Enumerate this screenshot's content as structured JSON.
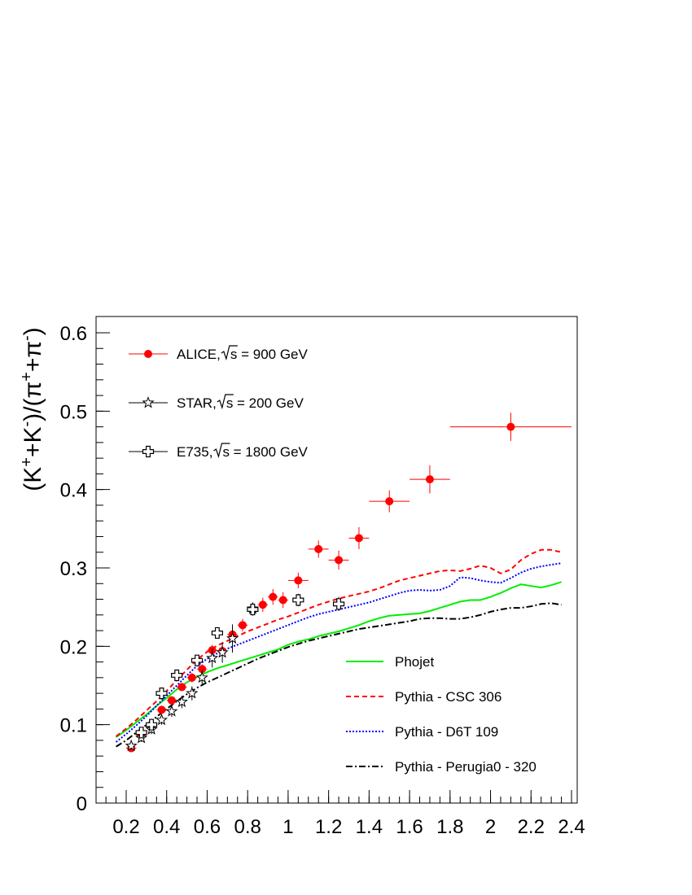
{
  "chart_data": {
    "type": "scatter",
    "ylabel_parts": [
      "(K",
      "+",
      "+K",
      "-",
      ")/(π",
      "+",
      "+π",
      "-",
      ")"
    ],
    "xlim": [
      0.05,
      2.4
    ],
    "ylim": [
      0,
      0.62
    ],
    "x_ticks": [
      {
        "v": 0.2,
        "label": "0.2"
      },
      {
        "v": 0.4,
        "label": "0.4"
      },
      {
        "v": 0.6,
        "label": "0.6"
      },
      {
        "v": 0.8,
        "label": "0.8"
      },
      {
        "v": 1.0,
        "label": "1"
      },
      {
        "v": 1.2,
        "label": "1.2"
      },
      {
        "v": 1.4,
        "label": "1.4"
      },
      {
        "v": 1.6,
        "label": "1.6"
      },
      {
        "v": 1.8,
        "label": "1.8"
      },
      {
        "v": 2.0,
        "label": "2"
      },
      {
        "v": 2.2,
        "label": "2.2"
      },
      {
        "v": 2.4,
        "label": "2.4"
      }
    ],
    "y_ticks": [
      {
        "v": 0,
        "label": "0"
      },
      {
        "v": 0.1,
        "label": "0.1"
      },
      {
        "v": 0.2,
        "label": "0.2"
      },
      {
        "v": 0.3,
        "label": "0.3"
      },
      {
        "v": 0.4,
        "label": "0.4"
      },
      {
        "v": 0.5,
        "label": "0.5"
      },
      {
        "v": 0.6,
        "label": "0.6"
      }
    ],
    "legend_upper": [
      {
        "label": "ALICE,",
        "sqrt_label": "s = 900 GeV",
        "marker": "circle",
        "color": "#ff0000"
      },
      {
        "label": "STAR,",
        "sqrt_label": "s = 200 GeV",
        "marker": "star",
        "color": "#000000"
      },
      {
        "label": "E735,",
        "sqrt_label": "s = 1800 GeV",
        "marker": "cross",
        "color": "#000000"
      }
    ],
    "legend_lower": [
      {
        "label": "Phojet",
        "color": "#00ee00",
        "dash": "none"
      },
      {
        "label": "Pythia - CSC 306",
        "color": "#ff0000",
        "dash": "dashed"
      },
      {
        "label": "Pythia - D6T 109",
        "color": "#0000ff",
        "dash": "dotted"
      },
      {
        "label": "Pythia - Perugia0 - 320",
        "color": "#000000",
        "dash": "dashdot"
      }
    ],
    "series": [
      {
        "name": "ALICE",
        "color": "#ff0000",
        "marker": "circle",
        "points": [
          {
            "x": 0.225,
            "y": 0.07,
            "xerr": 0.025,
            "yerr": 0.004
          },
          {
            "x": 0.275,
            "y": 0.086,
            "xerr": 0.025,
            "yerr": 0.004
          },
          {
            "x": 0.325,
            "y": 0.099,
            "xerr": 0.025,
            "yerr": 0.004
          },
          {
            "x": 0.375,
            "y": 0.119,
            "xerr": 0.025,
            "yerr": 0.005
          },
          {
            "x": 0.425,
            "y": 0.131,
            "xerr": 0.025,
            "yerr": 0.005
          },
          {
            "x": 0.475,
            "y": 0.148,
            "xerr": 0.025,
            "yerr": 0.005
          },
          {
            "x": 0.525,
            "y": 0.16,
            "xerr": 0.025,
            "yerr": 0.006
          },
          {
            "x": 0.575,
            "y": 0.171,
            "xerr": 0.025,
            "yerr": 0.006
          },
          {
            "x": 0.625,
            "y": 0.195,
            "xerr": 0.025,
            "yerr": 0.007
          },
          {
            "x": 0.675,
            "y": 0.194,
            "xerr": 0.025,
            "yerr": 0.007
          },
          {
            "x": 0.725,
            "y": 0.215,
            "xerr": 0.025,
            "yerr": 0.008
          },
          {
            "x": 0.775,
            "y": 0.227,
            "xerr": 0.025,
            "yerr": 0.008
          },
          {
            "x": 0.825,
            "y": 0.247,
            "xerr": 0.025,
            "yerr": 0.008
          },
          {
            "x": 0.875,
            "y": 0.253,
            "xerr": 0.025,
            "yerr": 0.009
          },
          {
            "x": 0.925,
            "y": 0.263,
            "xerr": 0.025,
            "yerr": 0.01
          },
          {
            "x": 0.975,
            "y": 0.259,
            "xerr": 0.025,
            "yerr": 0.01
          },
          {
            "x": 1.05,
            "y": 0.284,
            "xerr": 0.05,
            "yerr": 0.01
          },
          {
            "x": 1.15,
            "y": 0.324,
            "xerr": 0.05,
            "yerr": 0.011
          },
          {
            "x": 1.25,
            "y": 0.31,
            "xerr": 0.05,
            "yerr": 0.012
          },
          {
            "x": 1.35,
            "y": 0.338,
            "xerr": 0.05,
            "yerr": 0.014
          },
          {
            "x": 1.5,
            "y": 0.385,
            "xerr": 0.1,
            "yerr": 0.014
          },
          {
            "x": 1.7,
            "y": 0.413,
            "xerr": 0.1,
            "yerr": 0.018
          },
          {
            "x": 2.1,
            "y": 0.48,
            "xerr": 0.3,
            "yerr": 0.018
          }
        ]
      },
      {
        "name": "STAR",
        "color": "#000000",
        "marker": "star",
        "points": [
          {
            "x": 0.225,
            "y": 0.073,
            "yerr": 0.004
          },
          {
            "x": 0.275,
            "y": 0.083,
            "yerr": 0.005
          },
          {
            "x": 0.325,
            "y": 0.094,
            "yerr": 0.006
          },
          {
            "x": 0.375,
            "y": 0.106,
            "yerr": 0.006
          },
          {
            "x": 0.425,
            "y": 0.117,
            "yerr": 0.007
          },
          {
            "x": 0.475,
            "y": 0.129,
            "yerr": 0.008
          },
          {
            "x": 0.525,
            "y": 0.14,
            "yerr": 0.009
          },
          {
            "x": 0.575,
            "y": 0.16,
            "yerr": 0.01
          },
          {
            "x": 0.625,
            "y": 0.185,
            "yerr": 0.012
          },
          {
            "x": 0.675,
            "y": 0.192,
            "yerr": 0.013
          },
          {
            "x": 0.725,
            "y": 0.21,
            "yerr": 0.018
          },
          {
            "x": 0.825,
            "y": 0.248,
            "yerr": 0.008
          }
        ]
      },
      {
        "name": "E735",
        "color": "#000000",
        "marker": "cross",
        "points": [
          {
            "x": 0.275,
            "y": 0.09,
            "yerr": 0.004
          },
          {
            "x": 0.325,
            "y": 0.1,
            "yerr": 0.004
          },
          {
            "x": 0.375,
            "y": 0.14,
            "yerr": 0.005
          },
          {
            "x": 0.45,
            "y": 0.163,
            "yerr": 0.005
          },
          {
            "x": 0.55,
            "y": 0.182,
            "yerr": 0.006
          },
          {
            "x": 0.65,
            "y": 0.217,
            "yerr": 0.006
          },
          {
            "x": 0.825,
            "y": 0.247,
            "yerr": 0.006
          },
          {
            "x": 1.05,
            "y": 0.259,
            "yerr": 0.008
          },
          {
            "x": 1.25,
            "y": 0.254,
            "yerr": 0.009
          }
        ]
      }
    ],
    "curves": [
      {
        "name": "Phojet",
        "color": "#00ee00",
        "dash": "none",
        "x": [
          0.15,
          0.2,
          0.25,
          0.3,
          0.35,
          0.4,
          0.45,
          0.5,
          0.55,
          0.6,
          0.65,
          0.7,
          0.75,
          0.8,
          0.85,
          0.9,
          0.95,
          1.0,
          1.05,
          1.1,
          1.15,
          1.2,
          1.25,
          1.3,
          1.35,
          1.4,
          1.45,
          1.5,
          1.55,
          1.6,
          1.65,
          1.7,
          1.75,
          1.8,
          1.85,
          1.9,
          1.95,
          2.0,
          2.05,
          2.1,
          2.15,
          2.2,
          2.25,
          2.3,
          2.35
        ],
        "y": [
          0.084,
          0.093,
          0.103,
          0.113,
          0.124,
          0.134,
          0.145,
          0.154,
          0.161,
          0.167,
          0.172,
          0.176,
          0.18,
          0.184,
          0.188,
          0.192,
          0.196,
          0.202,
          0.206,
          0.209,
          0.213,
          0.216,
          0.219,
          0.223,
          0.227,
          0.232,
          0.236,
          0.239,
          0.24,
          0.241,
          0.242,
          0.245,
          0.249,
          0.253,
          0.257,
          0.259,
          0.259,
          0.263,
          0.268,
          0.274,
          0.279,
          0.277,
          0.275,
          0.278,
          0.282
        ]
      },
      {
        "name": "Pythia - CSC 306",
        "color": "#ff0000",
        "dash": "dashed",
        "x": [
          0.15,
          0.2,
          0.25,
          0.3,
          0.35,
          0.4,
          0.45,
          0.5,
          0.55,
          0.6,
          0.65,
          0.7,
          0.75,
          0.8,
          0.85,
          0.9,
          0.95,
          1.0,
          1.05,
          1.1,
          1.15,
          1.2,
          1.25,
          1.3,
          1.35,
          1.4,
          1.45,
          1.5,
          1.55,
          1.6,
          1.65,
          1.7,
          1.75,
          1.8,
          1.85,
          1.9,
          1.95,
          2.0,
          2.05,
          2.1,
          2.15,
          2.2,
          2.25,
          2.3,
          2.35
        ],
        "y": [
          0.085,
          0.095,
          0.106,
          0.118,
          0.13,
          0.143,
          0.157,
          0.17,
          0.183,
          0.193,
          0.201,
          0.207,
          0.213,
          0.219,
          0.224,
          0.229,
          0.234,
          0.238,
          0.243,
          0.248,
          0.253,
          0.257,
          0.261,
          0.264,
          0.267,
          0.27,
          0.274,
          0.279,
          0.284,
          0.287,
          0.29,
          0.293,
          0.296,
          0.297,
          0.296,
          0.299,
          0.303,
          0.3,
          0.293,
          0.298,
          0.31,
          0.318,
          0.323,
          0.323,
          0.32
        ]
      },
      {
        "name": "Pythia - D6T 109",
        "color": "#0000ff",
        "dash": "dotted",
        "x": [
          0.15,
          0.2,
          0.25,
          0.3,
          0.35,
          0.4,
          0.45,
          0.5,
          0.55,
          0.6,
          0.65,
          0.7,
          0.75,
          0.8,
          0.85,
          0.9,
          0.95,
          1.0,
          1.05,
          1.1,
          1.15,
          1.2,
          1.25,
          1.3,
          1.35,
          1.4,
          1.45,
          1.5,
          1.55,
          1.6,
          1.65,
          1.7,
          1.75,
          1.8,
          1.85,
          1.9,
          1.95,
          2.0,
          2.05,
          2.1,
          2.15,
          2.2,
          2.25,
          2.3,
          2.35
        ],
        "y": [
          0.078,
          0.088,
          0.099,
          0.111,
          0.124,
          0.137,
          0.15,
          0.163,
          0.175,
          0.184,
          0.191,
          0.197,
          0.202,
          0.207,
          0.212,
          0.217,
          0.222,
          0.227,
          0.232,
          0.237,
          0.241,
          0.244,
          0.247,
          0.25,
          0.253,
          0.256,
          0.26,
          0.264,
          0.268,
          0.271,
          0.272,
          0.271,
          0.272,
          0.277,
          0.288,
          0.287,
          0.284,
          0.282,
          0.281,
          0.287,
          0.294,
          0.299,
          0.302,
          0.304,
          0.306
        ]
      },
      {
        "name": "Pythia - Perugia0 - 320",
        "color": "#000000",
        "dash": "dashdot",
        "x": [
          0.15,
          0.2,
          0.25,
          0.3,
          0.35,
          0.4,
          0.45,
          0.5,
          0.55,
          0.6,
          0.65,
          0.7,
          0.75,
          0.8,
          0.85,
          0.9,
          0.95,
          1.0,
          1.05,
          1.1,
          1.15,
          1.2,
          1.25,
          1.3,
          1.35,
          1.4,
          1.45,
          1.5,
          1.55,
          1.6,
          1.65,
          1.7,
          1.75,
          1.8,
          1.85,
          1.9,
          1.95,
          2.0,
          2.05,
          2.1,
          2.15,
          2.2,
          2.25,
          2.3,
          2.35
        ],
        "y": [
          0.072,
          0.08,
          0.09,
          0.1,
          0.11,
          0.12,
          0.13,
          0.139,
          0.147,
          0.154,
          0.16,
          0.166,
          0.172,
          0.178,
          0.184,
          0.189,
          0.194,
          0.199,
          0.203,
          0.207,
          0.21,
          0.213,
          0.216,
          0.219,
          0.222,
          0.224,
          0.226,
          0.228,
          0.23,
          0.232,
          0.235,
          0.236,
          0.236,
          0.235,
          0.235,
          0.237,
          0.24,
          0.244,
          0.247,
          0.249,
          0.249,
          0.251,
          0.254,
          0.255,
          0.253
        ]
      }
    ]
  }
}
